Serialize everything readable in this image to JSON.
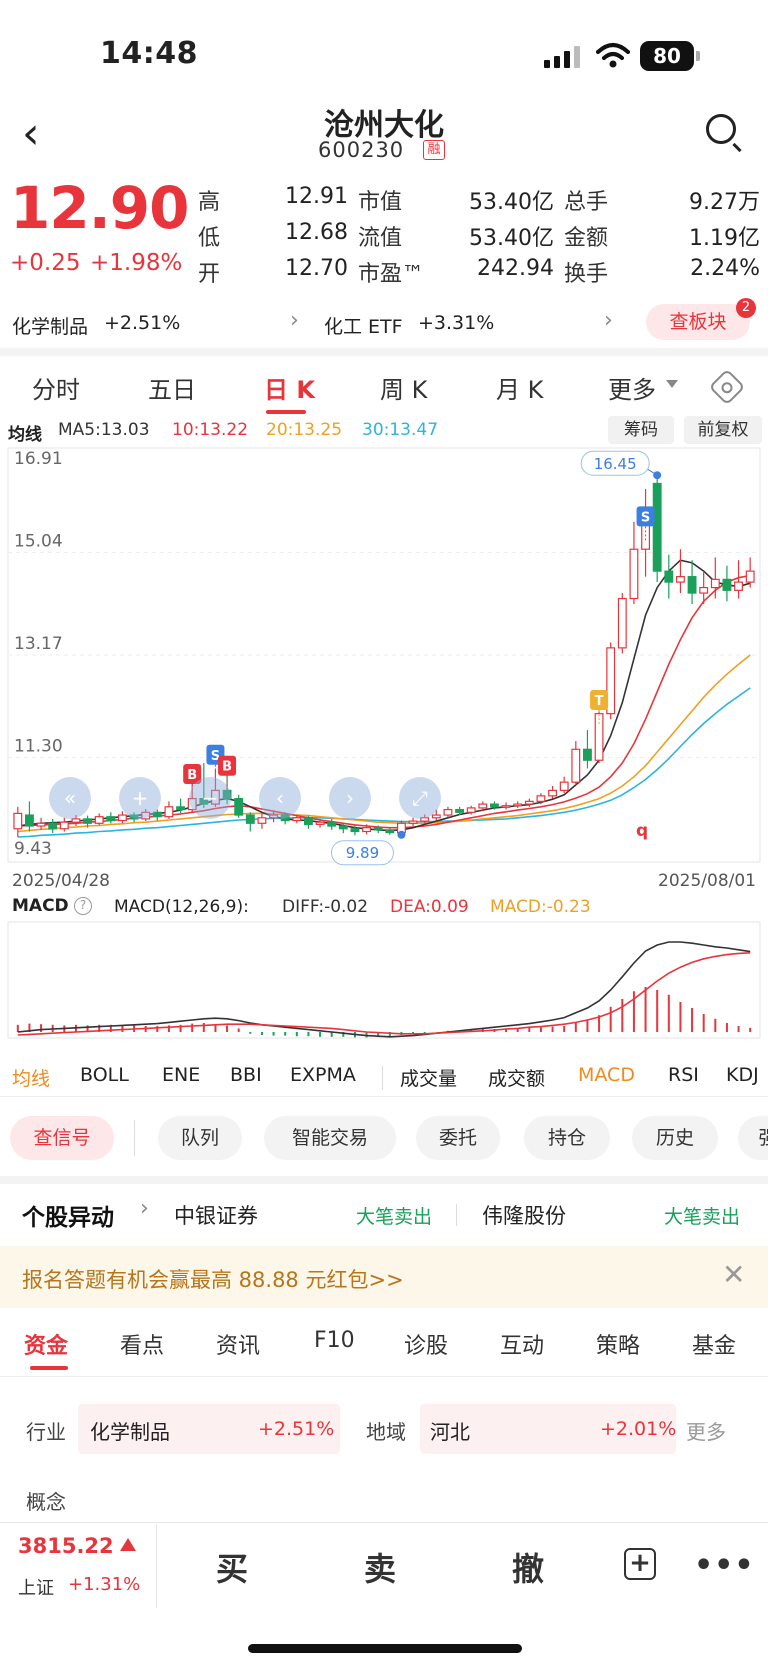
{
  "status": {
    "time": "14:48",
    "battery": "80"
  },
  "header": {
    "title": "沧州大化",
    "code": "600230",
    "tag": "融"
  },
  "quote": {
    "price": "12.90",
    "change": "+0.25",
    "change_pct": "+1.98%",
    "rows": [
      {
        "l1": "高",
        "v1": "12.91",
        "l2": "市值",
        "v2": "53.40亿",
        "l3": "总手",
        "v3": "9.27万"
      },
      {
        "l1": "低",
        "v1": "12.68",
        "l2": "流值",
        "v2": "53.40亿",
        "l3": "金额",
        "v3": "1.19亿"
      },
      {
        "l1": "开",
        "v1": "12.70",
        "l2": "市盈™",
        "v2": "242.94",
        "l3": "换手",
        "v3": "2.24%"
      }
    ]
  },
  "sectors": {
    "s1_name": "化学制品",
    "s1_pct": "+2.51%",
    "s2_name": "化工 ETF",
    "s2_pct": "+3.31%",
    "button": "查板块",
    "badge": "2"
  },
  "tabs": [
    "分时",
    "五日",
    "日 K",
    "周 K",
    "月 K",
    "更多"
  ],
  "ma": {
    "label": "均线",
    "ma5": "MA5:13.03",
    "ma10": "10:13.22",
    "ma20": "20:13.25",
    "ma30": "30:13.47",
    "chip1": "筹码",
    "chip2": "前复权"
  },
  "colors": {
    "ma5": "#333333",
    "ma10": "#e8353b",
    "ma20": "#f0a020",
    "ma30": "#2ab4e0"
  },
  "chart_data": {
    "type": "candlestick",
    "y_ticks": [
      "16.91",
      "15.04",
      "13.17",
      "11.30",
      "9.43"
    ],
    "ylim": [
      9.43,
      16.91
    ],
    "x_start": "2025/04/28",
    "x_end": "2025/08/01",
    "max_label": "16.45",
    "min_label": "9.89",
    "markers": [
      "B",
      "S",
      "B",
      "T",
      "S"
    ],
    "annotation": "q",
    "candles": [
      [
        10.0,
        10.28,
        9.85,
        10.4
      ],
      [
        10.25,
        10.05,
        9.95,
        10.5
      ],
      [
        10.05,
        10.1,
        9.98,
        10.2
      ],
      [
        10.1,
        10.0,
        9.92,
        10.18
      ],
      [
        10.0,
        10.12,
        9.95,
        10.2
      ],
      [
        10.12,
        10.18,
        10.05,
        10.25
      ],
      [
        10.18,
        10.1,
        10.02,
        10.24
      ],
      [
        10.1,
        10.22,
        10.06,
        10.28
      ],
      [
        10.22,
        10.15,
        10.1,
        10.3
      ],
      [
        10.15,
        10.25,
        10.1,
        10.32
      ],
      [
        10.25,
        10.18,
        10.12,
        10.3
      ],
      [
        10.18,
        10.3,
        10.14,
        10.36
      ],
      [
        10.3,
        10.22,
        10.15,
        10.35
      ],
      [
        10.22,
        10.4,
        10.18,
        10.5
      ],
      [
        10.4,
        10.35,
        10.28,
        10.55
      ],
      [
        10.35,
        10.55,
        10.3,
        10.95
      ],
      [
        10.55,
        10.45,
        10.38,
        11.2
      ],
      [
        10.45,
        10.7,
        10.4,
        11.1
      ],
      [
        10.7,
        10.55,
        10.45,
        11.0
      ],
      [
        10.55,
        10.25,
        10.2,
        10.62
      ],
      [
        10.25,
        10.1,
        9.95,
        10.3
      ],
      [
        10.1,
        10.2,
        10.0,
        10.28
      ],
      [
        10.2,
        10.25,
        10.12,
        10.32
      ],
      [
        10.25,
        10.15,
        10.08,
        10.3
      ],
      [
        10.15,
        10.2,
        10.1,
        10.26
      ],
      [
        10.2,
        10.08,
        10.0,
        10.24
      ],
      [
        10.08,
        10.12,
        10.02,
        10.18
      ],
      [
        10.12,
        10.05,
        9.98,
        10.18
      ],
      [
        10.05,
        10.0,
        9.92,
        10.1
      ],
      [
        10.0,
        9.95,
        9.88,
        10.06
      ],
      [
        9.95,
        10.02,
        9.9,
        10.08
      ],
      [
        10.02,
        9.98,
        9.92,
        10.06
      ],
      [
        9.98,
        9.93,
        9.89,
        10.02
      ],
      [
        9.93,
        10.1,
        9.89,
        10.15
      ],
      [
        10.1,
        10.14,
        10.05,
        10.2
      ],
      [
        10.14,
        10.2,
        10.1,
        10.26
      ],
      [
        10.2,
        10.25,
        10.15,
        10.35
      ],
      [
        10.25,
        10.35,
        10.2,
        10.4
      ],
      [
        10.35,
        10.3,
        10.25,
        10.4
      ],
      [
        10.3,
        10.38,
        10.26,
        10.42
      ],
      [
        10.38,
        10.45,
        10.32,
        10.5
      ],
      [
        10.45,
        10.4,
        10.35,
        10.5
      ],
      [
        10.4,
        10.42,
        10.35,
        10.48
      ],
      [
        10.42,
        10.45,
        10.38,
        10.5
      ],
      [
        10.45,
        10.5,
        10.4,
        10.55
      ],
      [
        10.5,
        10.6,
        10.45,
        10.65
      ],
      [
        10.6,
        10.7,
        10.55,
        10.78
      ],
      [
        10.7,
        10.85,
        10.65,
        10.95
      ],
      [
        10.85,
        11.45,
        10.8,
        11.6
      ],
      [
        11.45,
        11.25,
        11.1,
        11.8
      ],
      [
        11.25,
        12.1,
        11.2,
        12.2
      ],
      [
        12.1,
        13.3,
        12.0,
        13.4
      ],
      [
        13.3,
        14.2,
        13.2,
        14.3
      ],
      [
        14.2,
        15.1,
        14.1,
        15.6
      ],
      [
        15.1,
        15.85,
        14.6,
        16.2
      ],
      [
        16.3,
        14.7,
        14.5,
        16.45
      ],
      [
        14.7,
        14.5,
        14.2,
        15.0
      ],
      [
        14.5,
        14.6,
        14.3,
        15.1
      ],
      [
        14.6,
        14.3,
        14.1,
        14.9
      ],
      [
        14.3,
        14.4,
        14.1,
        14.7
      ],
      [
        14.4,
        14.55,
        14.2,
        14.95
      ],
      [
        14.55,
        14.35,
        14.15,
        14.8
      ],
      [
        14.35,
        14.5,
        14.2,
        14.9
      ],
      [
        14.5,
        14.7,
        14.4,
        14.95
      ]
    ],
    "ma5": [
      10.05,
      10.08,
      10.1,
      10.11,
      10.12,
      10.14,
      10.16,
      10.18,
      10.2,
      10.22,
      10.24,
      10.26,
      10.28,
      10.3,
      10.34,
      10.4,
      10.46,
      10.52,
      10.55,
      10.5,
      10.4,
      10.3,
      10.22,
      10.18,
      10.16,
      10.15,
      10.12,
      10.1,
      10.06,
      10.02,
      10.0,
      9.98,
      9.97,
      9.98,
      10.02,
      10.08,
      10.14,
      10.2,
      10.26,
      10.3,
      10.34,
      10.38,
      10.4,
      10.42,
      10.44,
      10.48,
      10.54,
      10.62,
      10.8,
      10.98,
      11.25,
      11.7,
      12.3,
      13.1,
      13.9,
      14.4,
      14.7,
      14.9,
      14.85,
      14.7,
      14.5,
      14.45,
      14.42,
      14.48
    ],
    "ma10": [
      10.05,
      10.06,
      10.07,
      10.08,
      10.09,
      10.1,
      10.12,
      10.13,
      10.15,
      10.17,
      10.19,
      10.21,
      10.23,
      10.25,
      10.27,
      10.3,
      10.33,
      10.37,
      10.4,
      10.42,
      10.4,
      10.36,
      10.32,
      10.28,
      10.24,
      10.2,
      10.16,
      10.13,
      10.1,
      10.07,
      10.05,
      10.03,
      10.02,
      10.02,
      10.03,
      10.05,
      10.08,
      10.12,
      10.16,
      10.2,
      10.24,
      10.28,
      10.31,
      10.34,
      10.37,
      10.4,
      10.44,
      10.49,
      10.56,
      10.64,
      10.76,
      10.95,
      11.2,
      11.55,
      12.0,
      12.5,
      13.0,
      13.45,
      13.85,
      14.15,
      14.35,
      14.5,
      14.58,
      14.62
    ],
    "ma20": [
      9.95,
      9.97,
      9.99,
      10.0,
      10.02,
      10.03,
      10.05,
      10.06,
      10.08,
      10.09,
      10.11,
      10.12,
      10.14,
      10.16,
      10.18,
      10.2,
      10.22,
      10.24,
      10.26,
      10.27,
      10.28,
      10.28,
      10.27,
      10.26,
      10.25,
      10.24,
      10.22,
      10.2,
      10.18,
      10.16,
      10.14,
      10.12,
      10.11,
      10.1,
      10.1,
      10.1,
      10.11,
      10.12,
      10.14,
      10.16,
      10.18,
      10.2,
      10.22,
      10.24,
      10.27,
      10.3,
      10.33,
      10.37,
      10.42,
      10.48,
      10.55,
      10.65,
      10.78,
      10.95,
      11.15,
      11.4,
      11.65,
      11.9,
      12.15,
      12.4,
      12.62,
      12.82,
      13.0,
      13.17
    ],
    "ma30": [
      9.85,
      9.86,
      9.88,
      9.89,
      9.9,
      9.92,
      9.93,
      9.95,
      9.96,
      9.98,
      9.99,
      10.01,
      10.02,
      10.04,
      10.06,
      10.08,
      10.1,
      10.12,
      10.14,
      10.16,
      10.17,
      10.18,
      10.19,
      10.19,
      10.2,
      10.2,
      10.2,
      10.19,
      10.18,
      10.17,
      10.16,
      10.15,
      10.14,
      10.13,
      10.13,
      10.13,
      10.13,
      10.14,
      10.14,
      10.15,
      10.16,
      10.17,
      10.18,
      10.2,
      10.22,
      10.24,
      10.27,
      10.3,
      10.34,
      10.39,
      10.45,
      10.52,
      10.62,
      10.75,
      10.9,
      11.08,
      11.28,
      11.5,
      11.72,
      11.92,
      12.1,
      12.27,
      12.42,
      12.57
    ]
  },
  "macd": {
    "label": "MACD",
    "params": "MACD(12,26,9):",
    "diff": "DIFF:-0.02",
    "dea": "DEA:0.09",
    "macd": "MACD:-0.23",
    "bars": [
      0.12,
      0.14,
      0.13,
      0.12,
      0.11,
      0.12,
      0.11,
      0.12,
      0.12,
      0.11,
      0.12,
      0.1,
      0.1,
      0.11,
      0.12,
      0.14,
      0.15,
      0.13,
      0.11,
      0.06,
      -0.03,
      -0.05,
      -0.06,
      -0.06,
      -0.07,
      -0.07,
      -0.08,
      -0.08,
      -0.08,
      -0.09,
      -0.09,
      -0.08,
      -0.08,
      -0.05,
      -0.03,
      -0.02,
      0.0,
      0.02,
      0.03,
      0.04,
      0.05,
      0.05,
      0.06,
      0.06,
      0.07,
      0.08,
      0.09,
      0.1,
      0.16,
      0.2,
      0.28,
      0.42,
      0.55,
      0.68,
      0.75,
      0.7,
      0.62,
      0.5,
      0.4,
      0.3,
      0.22,
      0.15,
      0.1,
      0.07
    ],
    "diff_line": [
      0.0,
      0.02,
      0.04,
      0.05,
      0.06,
      0.07,
      0.08,
      0.09,
      0.1,
      0.11,
      0.12,
      0.13,
      0.14,
      0.16,
      0.18,
      0.2,
      0.22,
      0.23,
      0.22,
      0.19,
      0.15,
      0.12,
      0.1,
      0.08,
      0.06,
      0.04,
      0.02,
      0.0,
      -0.02,
      -0.04,
      -0.06,
      -0.07,
      -0.08,
      -0.07,
      -0.06,
      -0.04,
      -0.02,
      0.0,
      0.02,
      0.04,
      0.06,
      0.08,
      0.1,
      0.12,
      0.14,
      0.17,
      0.2,
      0.24,
      0.32,
      0.4,
      0.52,
      0.7,
      0.92,
      1.15,
      1.35,
      1.45,
      1.5,
      1.5,
      1.48,
      1.45,
      1.42,
      1.4,
      1.37,
      1.34
    ],
    "dea_line": [
      -0.05,
      -0.04,
      -0.03,
      -0.02,
      -0.01,
      0.0,
      0.01,
      0.02,
      0.03,
      0.04,
      0.05,
      0.06,
      0.07,
      0.08,
      0.09,
      0.1,
      0.11,
      0.12,
      0.13,
      0.13,
      0.13,
      0.12,
      0.11,
      0.1,
      0.09,
      0.08,
      0.07,
      0.06,
      0.04,
      0.02,
      0.0,
      -0.01,
      -0.02,
      -0.03,
      -0.03,
      -0.03,
      -0.02,
      -0.01,
      0.0,
      0.01,
      0.02,
      0.03,
      0.05,
      0.06,
      0.08,
      0.09,
      0.11,
      0.13,
      0.16,
      0.2,
      0.25,
      0.32,
      0.42,
      0.55,
      0.7,
      0.85,
      0.98,
      1.08,
      1.16,
      1.22,
      1.26,
      1.29,
      1.31,
      1.32
    ]
  },
  "indicators": [
    "均线",
    "BOLL",
    "ENE",
    "BBI",
    "EXPMA",
    "成交量",
    "成交额",
    "MACD",
    "RSI",
    "KDJ"
  ],
  "pills": [
    "查信号",
    "队列",
    "智能交易",
    "委托",
    "持仓",
    "历史",
    "强"
  ],
  "news": {
    "head": "个股异动",
    "n1": "中银证券",
    "g1": "大笔卖出",
    "n2": "伟隆股份",
    "g2": "大笔卖出"
  },
  "promo": "报名答题有机会赢最高 88.88 元红包>>",
  "btabs": [
    "资金",
    "看点",
    "资讯",
    "F10",
    "诊股",
    "互动",
    "策略",
    "基金"
  ],
  "industry": {
    "label": "行业",
    "name": "化学制品",
    "pct": "+2.51%",
    "region_label": "地域",
    "region": "河北",
    "region_pct": "+2.01%",
    "more": "更多",
    "concept": "概念"
  },
  "bottom": {
    "index_value": "3815.22",
    "index_name": "上证",
    "index_pct": "+1.31%",
    "buy": "买",
    "sell": "卖",
    "cancel": "撤"
  }
}
